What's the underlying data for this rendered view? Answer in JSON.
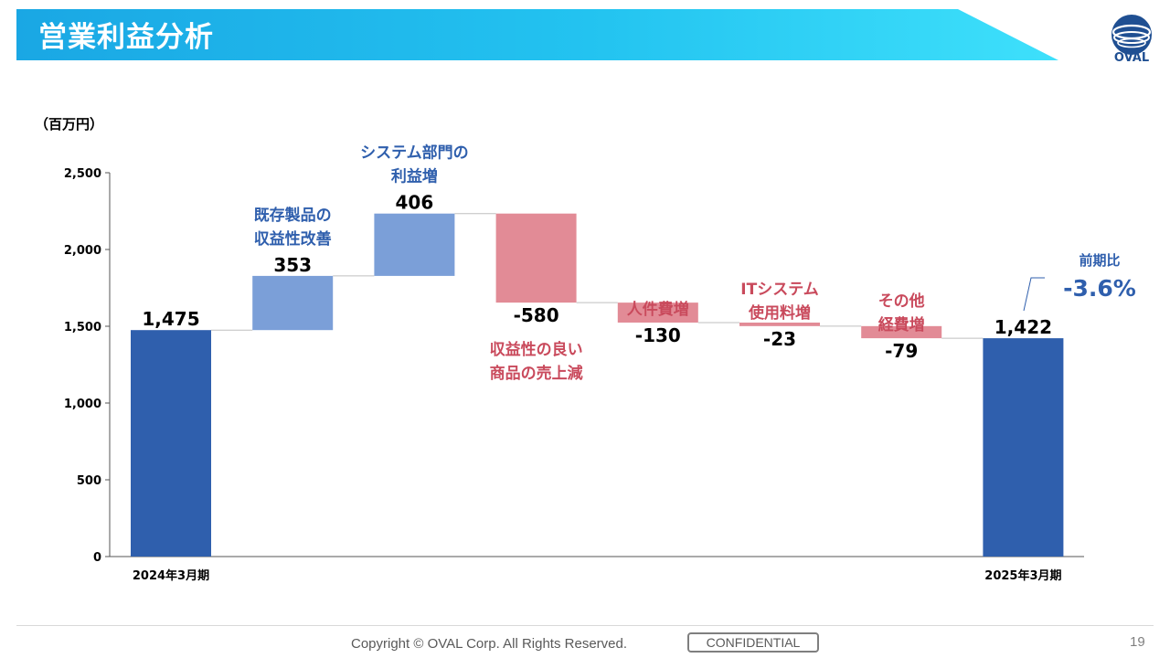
{
  "header": {
    "title": "営業利益分析"
  },
  "logo": {
    "text": "OVAL"
  },
  "footer": {
    "copyright": "Copyright © OVAL Corp. All Rights Reserved.",
    "confidential": "CONFIDENTIAL",
    "page_number": "19"
  },
  "colors": {
    "total": "#2f5fad",
    "increase": "#7b9fd8",
    "decrease": "#e28b96",
    "increase_label": "#2f5fad",
    "decrease_label": "#c94a5c"
  },
  "chart_data": {
    "type": "bar",
    "subtype": "waterfall",
    "unit_label": "（百万円）",
    "ylim": [
      0,
      2500
    ],
    "yticks": [
      0,
      500,
      1000,
      1500,
      2000,
      2500
    ],
    "ytick_labels": [
      "0",
      "500",
      "1,000",
      "1,500",
      "2,000",
      "2,500"
    ],
    "grid": false,
    "steps": [
      {
        "kind": "total",
        "value": 1475,
        "value_label": "1,475",
        "label": [],
        "category": "2024年3月期"
      },
      {
        "kind": "increase",
        "value": 353,
        "value_label": "353",
        "label": [
          "既存製品の",
          "収益性改善"
        ],
        "category": ""
      },
      {
        "kind": "increase",
        "value": 406,
        "value_label": "406",
        "label": [
          "システム部門の",
          "利益増"
        ],
        "category": ""
      },
      {
        "kind": "decrease",
        "value": -580,
        "value_label": "-580",
        "label": [
          "収益性の良い",
          "商品の売上減"
        ],
        "category": ""
      },
      {
        "kind": "decrease",
        "value": -130,
        "value_label": "-130",
        "label": [
          "人件費増"
        ],
        "category": ""
      },
      {
        "kind": "decrease",
        "value": -23,
        "value_label": "-23",
        "label": [
          "ITシステム",
          "使用料増"
        ],
        "category": ""
      },
      {
        "kind": "decrease",
        "value": -79,
        "value_label": "-79",
        "label": [
          "その他",
          "経費増"
        ],
        "category": ""
      },
      {
        "kind": "total",
        "value": 1422,
        "value_label": "1,422",
        "label": [],
        "category": "2025年3月期"
      }
    ],
    "annotation": {
      "label": "前期比",
      "value": "-3.6%"
    }
  }
}
